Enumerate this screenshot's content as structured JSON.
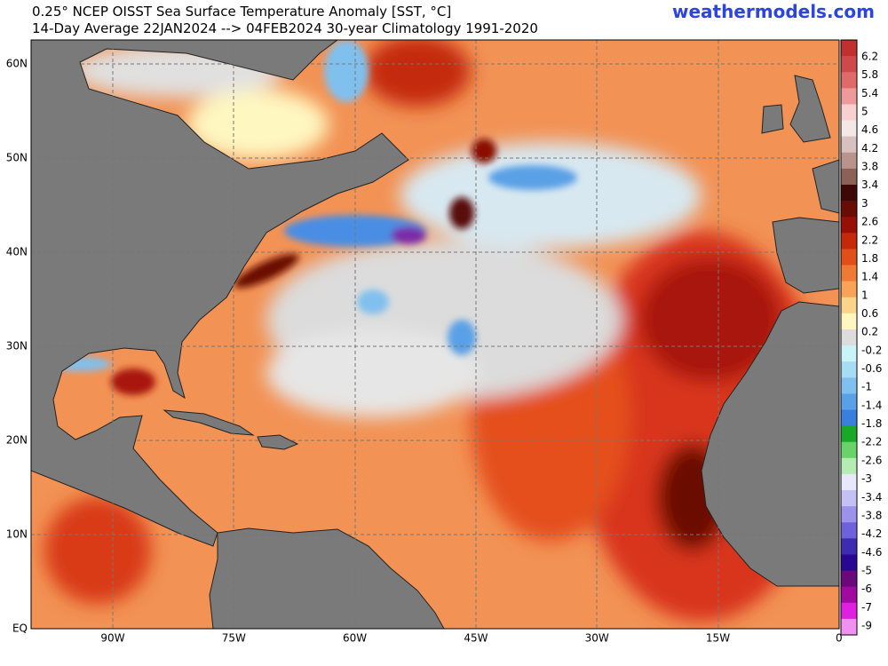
{
  "header": {
    "title": "0.25° NCEP OISST Sea Surface Temperature Anomaly [SST, °C]",
    "subtitle": "14-Day Average 22JAN2024 --> 04FEB2024   30-year Climatology 1991-2020",
    "site": "weathermodels.com"
  },
  "map": {
    "lat_labels": [
      "60N",
      "50N",
      "40N",
      "30N",
      "20N",
      "10N",
      "EQ"
    ],
    "lon_labels": [
      "90W",
      "75W",
      "60W",
      "45W",
      "30W",
      "15W",
      "0"
    ]
  },
  "colorbar": {
    "labels": [
      "6.2",
      "5.8",
      "5.4",
      "5",
      "4.6",
      "4.2",
      "3.8",
      "3.4",
      "3",
      "2.6",
      "2.2",
      "1.8",
      "1.4",
      "1",
      "0.6",
      "0.2",
      "-0.2",
      "-0.6",
      "-1",
      "-1.4",
      "-1.8",
      "-2.2",
      "-2.6",
      "-3",
      "-3.4",
      "-3.8",
      "-4.2",
      "-4.6",
      "-5",
      "-6",
      "-7",
      "-9"
    ],
    "colors": [
      "#c0302f",
      "#d0494a",
      "#e06a6a",
      "#ee9a9a",
      "#f8d0d0",
      "#f3e8e6",
      "#d8c0bc",
      "#b8948c",
      "#8c6258",
      "#3c0808",
      "#6a0c06",
      "#980f05",
      "#c42a0a",
      "#e04f1a",
      "#f07a34",
      "#f8a458",
      "#fbd48c",
      "#fff6c0",
      "#dcdcdc",
      "#c8f4f8",
      "#a6dcf4",
      "#80c0ee",
      "#5aa0e6",
      "#3a7ede",
      "#1aa82a",
      "#6ad26a",
      "#b4ecb4",
      "#e8e8fa",
      "#c4c0f4",
      "#9c92ec",
      "#6e62da",
      "#3e2cb0",
      "#280890",
      "#6a0a7a",
      "#a00aa0",
      "#e020e0",
      "#f090f0"
    ]
  }
}
